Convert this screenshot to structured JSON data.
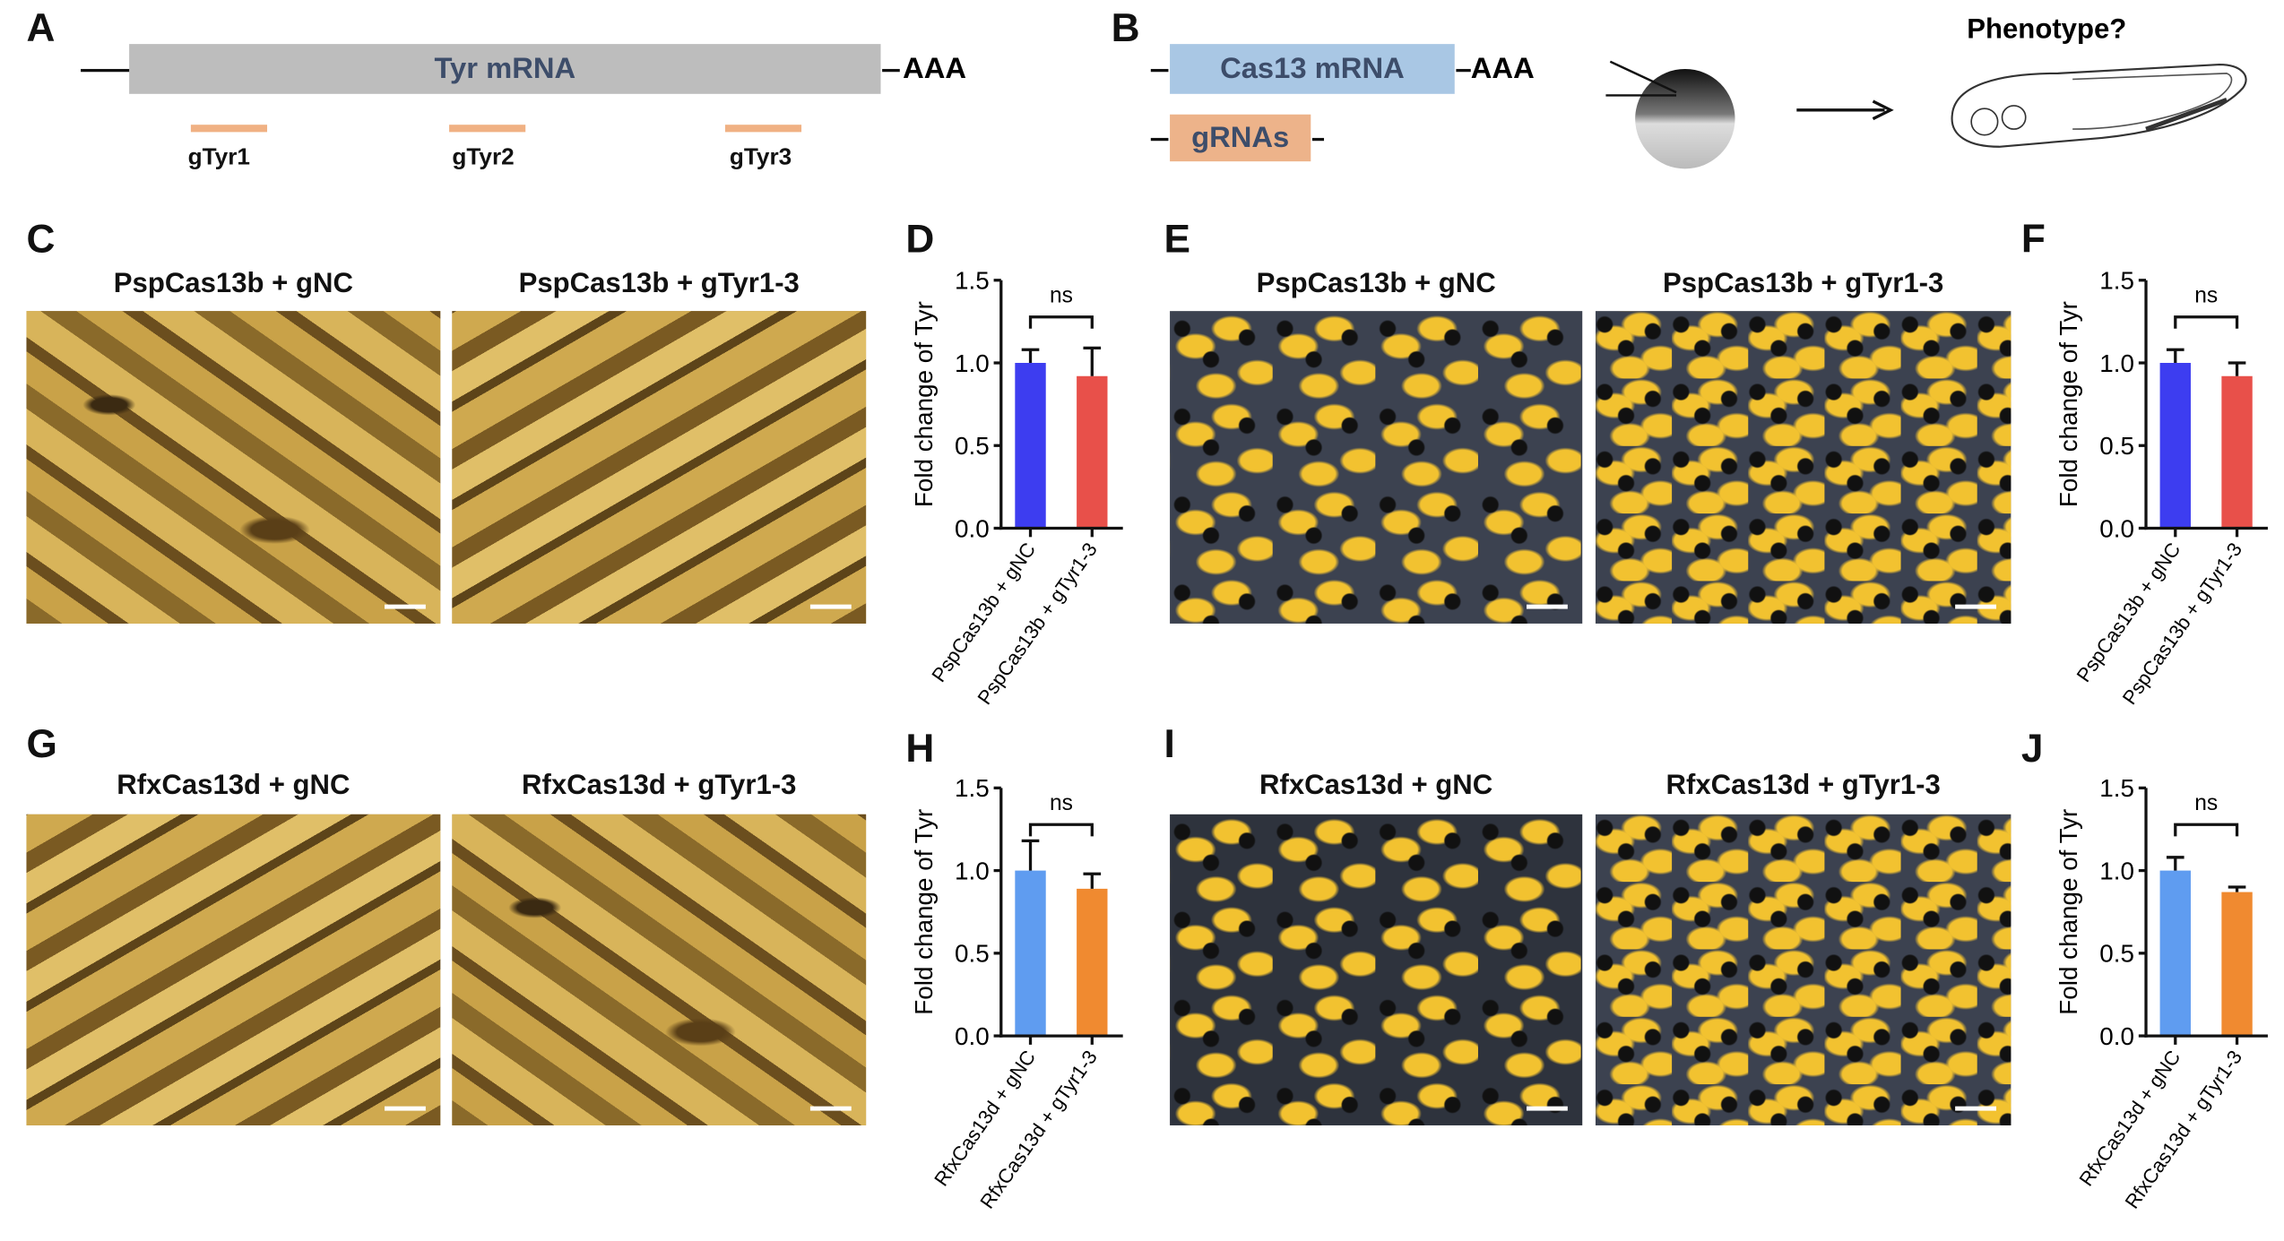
{
  "panels": {
    "A": "A",
    "B": "B",
    "C": "C",
    "D": "D",
    "E": "E",
    "F": "F",
    "G": "G",
    "H": "H",
    "I": "I",
    "J": "J"
  },
  "schematic_a": {
    "mrna": "Tyr mRNA",
    "polyA": "AAA",
    "guides": [
      "gTyr1",
      "gTyr2",
      "gTyr3"
    ]
  },
  "schematic_b": {
    "mrna": "Cas13 mRNA",
    "polyA": "AAA",
    "grnas": "gRNAs",
    "phenotype": "Phenotype?"
  },
  "image_titles": {
    "C": [
      "PspCas13b + gNC",
      "PspCas13b + gTyr1-3"
    ],
    "E": [
      "PspCas13b + gNC",
      "PspCas13b + gTyr1-3"
    ],
    "G": [
      "RfxCas13d + gNC",
      "RfxCas13d + gTyr1-3"
    ],
    "I": [
      "RfxCas13d + gNC",
      "RfxCas13d + gTyr1-3"
    ]
  },
  "chart_data": [
    {
      "panel": "D",
      "type": "bar",
      "ylabel": "Fold change of Tyr",
      "ylim": [
        0,
        1.5
      ],
      "yticks": [
        "0.0",
        "0.5",
        "1.0",
        "1.5"
      ],
      "categories": [
        "PspCas13b + gNC",
        "PspCas13b + gTyr1-3"
      ],
      "values": [
        1.0,
        0.92
      ],
      "errors": [
        0.08,
        0.17
      ],
      "colors": [
        "#3d3df0",
        "#e8504a"
      ],
      "annotation": "ns"
    },
    {
      "panel": "F",
      "type": "bar",
      "ylabel": "Fold change of Tyr",
      "ylim": [
        0,
        1.5
      ],
      "yticks": [
        "0.0",
        "0.5",
        "1.0",
        "1.5"
      ],
      "categories": [
        "PspCas13b + gNC",
        "PspCas13b + gTyr1-3"
      ],
      "values": [
        1.0,
        0.92
      ],
      "errors": [
        0.08,
        0.08
      ],
      "colors": [
        "#3d3df0",
        "#e8504a"
      ],
      "annotation": "ns"
    },
    {
      "panel": "H",
      "type": "bar",
      "ylabel": "Fold change of Tyr",
      "ylim": [
        0,
        1.5
      ],
      "yticks": [
        "0.0",
        "0.5",
        "1.0",
        "1.5"
      ],
      "categories": [
        "RfxCas13d + gNC",
        "RfxCas13d + gTyr1-3"
      ],
      "values": [
        1.0,
        0.89
      ],
      "errors": [
        0.18,
        0.09
      ],
      "colors": [
        "#5f9cf0",
        "#f08a30"
      ],
      "annotation": "ns"
    },
    {
      "panel": "J",
      "type": "bar",
      "ylabel": "Fold change of Tyr",
      "ylim": [
        0,
        1.5
      ],
      "yticks": [
        "0.0",
        "0.5",
        "1.0",
        "1.5"
      ],
      "categories": [
        "RfxCas13d + gNC",
        "RfxCas13d + gTyr1-3"
      ],
      "values": [
        1.0,
        0.87
      ],
      "errors": [
        0.08,
        0.03
      ],
      "colors": [
        "#5f9cf0",
        "#f08a30"
      ],
      "annotation": "ns"
    }
  ]
}
